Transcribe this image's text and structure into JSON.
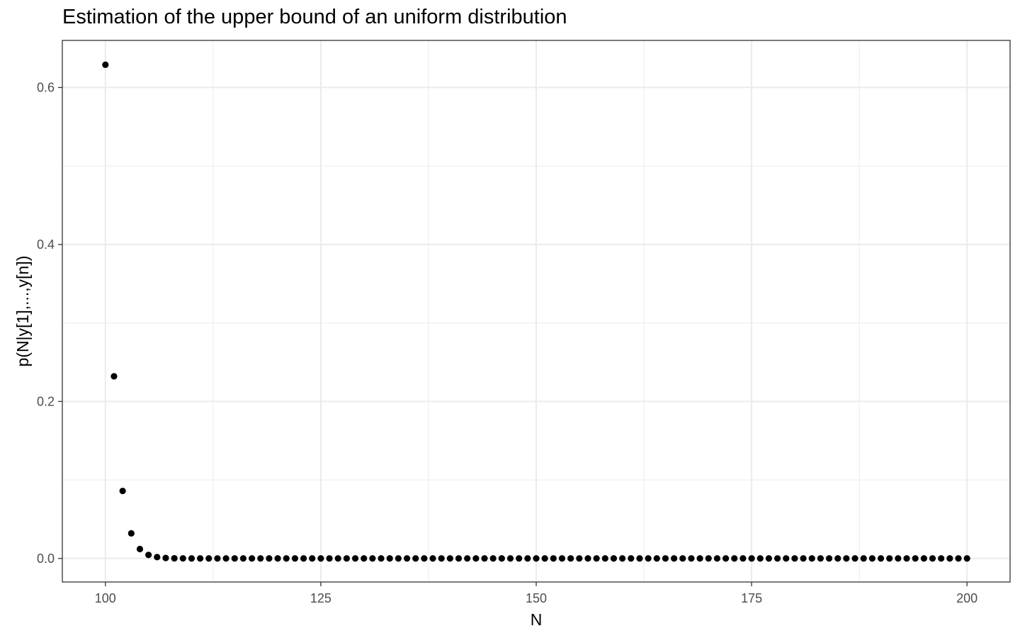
{
  "chart_data": {
    "type": "scatter",
    "title": "Estimation of the upper bound of an uniform distribution",
    "xlabel": "N",
    "ylabel": "p(N|y[1],...,y[n])",
    "xlim": [
      95,
      205
    ],
    "ylim": [
      -0.03,
      0.66
    ],
    "x_ticks": [
      100,
      125,
      150,
      175,
      200
    ],
    "x_tick_labels": [
      "100",
      "125",
      "150",
      "175",
      "200"
    ],
    "y_ticks": [
      0.0,
      0.2,
      0.4,
      0.6
    ],
    "y_tick_labels": [
      "0.0",
      "0.2",
      "0.4",
      "0.6"
    ],
    "x_minor_ticks": [
      112.5,
      137.5,
      162.5,
      187.5
    ],
    "y_minor_ticks": [
      0.1,
      0.3,
      0.5
    ],
    "grid": true,
    "theme": "bw",
    "point_color": "#000000",
    "x": [
      100,
      101,
      102,
      103,
      104,
      105,
      106,
      107,
      108,
      109,
      110,
      111,
      112,
      113,
      114,
      115,
      116,
      117,
      118,
      119,
      120,
      121,
      122,
      123,
      124,
      125,
      126,
      127,
      128,
      129,
      130,
      131,
      132,
      133,
      134,
      135,
      136,
      137,
      138,
      139,
      140,
      141,
      142,
      143,
      144,
      145,
      146,
      147,
      148,
      149,
      150,
      151,
      152,
      153,
      154,
      155,
      156,
      157,
      158,
      159,
      160,
      161,
      162,
      163,
      164,
      165,
      166,
      167,
      168,
      169,
      170,
      171,
      172,
      173,
      174,
      175,
      176,
      177,
      178,
      179,
      180,
      181,
      182,
      183,
      184,
      185,
      186,
      187,
      188,
      189,
      190,
      191,
      192,
      193,
      194,
      195,
      196,
      197,
      198,
      199,
      200
    ],
    "y": [
      0.629,
      0.232,
      0.086,
      0.032,
      0.012,
      0.0045,
      0.0017,
      0.0006,
      0.0002,
      0.0001,
      0,
      0,
      0,
      0,
      0,
      0,
      0,
      0,
      0,
      0,
      0,
      0,
      0,
      0,
      0,
      0,
      0,
      0,
      0,
      0,
      0,
      0,
      0,
      0,
      0,
      0,
      0,
      0,
      0,
      0,
      0,
      0,
      0,
      0,
      0,
      0,
      0,
      0,
      0,
      0,
      0,
      0,
      0,
      0,
      0,
      0,
      0,
      0,
      0,
      0,
      0,
      0,
      0,
      0,
      0,
      0,
      0,
      0,
      0,
      0,
      0,
      0,
      0,
      0,
      0,
      0,
      0,
      0,
      0,
      0,
      0,
      0,
      0,
      0,
      0,
      0,
      0,
      0,
      0,
      0,
      0,
      0,
      0,
      0,
      0,
      0,
      0,
      0,
      0,
      0,
      0
    ]
  }
}
